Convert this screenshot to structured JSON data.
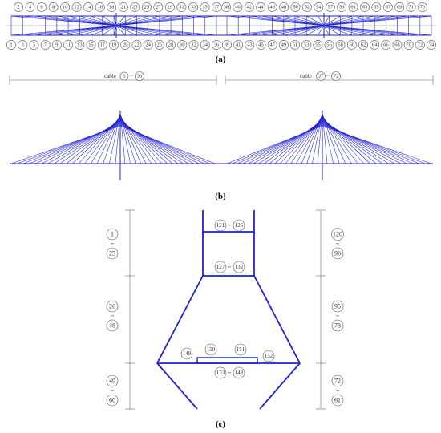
{
  "panels": {
    "a": "(a)",
    "b": "(b)",
    "c": "(c)"
  },
  "panel_a": {
    "top_numbers_left": [
      "2",
      "4",
      "6",
      "8",
      "10",
      "12",
      "14",
      "16",
      "18",
      "21",
      "23",
      "25",
      "27",
      "29",
      "31",
      "33",
      "35",
      "37"
    ],
    "top_numbers_right": [
      "38",
      "40",
      "42",
      "44",
      "46",
      "48",
      "50",
      "52",
      "54",
      "57",
      "59",
      "61",
      "63",
      "65",
      "67",
      "69",
      "71",
      "73"
    ],
    "bottom_numbers_left": [
      "1",
      "3",
      "5",
      "7",
      "9",
      "11",
      "13",
      "15",
      "17",
      "19",
      "20",
      "22",
      "24",
      "26",
      "28",
      "30",
      "32",
      "34",
      "36"
    ],
    "bottom_numbers_right": [
      "39",
      "41",
      "43",
      "45",
      "47",
      "49",
      "51",
      "53",
      "55",
      "56",
      "58",
      "60",
      "62",
      "64",
      "66",
      "68",
      "70",
      "72",
      "74"
    ]
  },
  "panel_b": {
    "left_cable_prefix": "cable",
    "left_cable_from": "1",
    "left_cable_sep": "~",
    "left_cable_to": "36",
    "right_cable_prefix": "cable",
    "right_cable_from": "37",
    "right_cable_sep": "~",
    "right_cable_to": "72"
  },
  "panel_c": {
    "left_groups": [
      {
        "from": "1",
        "sep": "~",
        "to": "25"
      },
      {
        "from": "26",
        "sep": "~",
        "to": "48"
      },
      {
        "from": "49",
        "sep": "~",
        "to": "60"
      }
    ],
    "right_groups": [
      {
        "from": "120",
        "sep": "~",
        "to": "96"
      },
      {
        "from": "95",
        "sep": "~",
        "to": "73"
      },
      {
        "from": "72",
        "sep": "~",
        "to": "61"
      }
    ],
    "upper_beam": {
      "from": "121",
      "sep": "~",
      "to": "126"
    },
    "lower_beam": {
      "from": "127",
      "sep": "~",
      "to": "132"
    },
    "cross_beam": {
      "from": "133",
      "sep": "~",
      "to": "148"
    },
    "node_149": "149",
    "node_150": "150",
    "node_151": "151",
    "node_152": "152"
  },
  "colors": {
    "structure": "#1f1fd6",
    "annotation": "#555555"
  }
}
